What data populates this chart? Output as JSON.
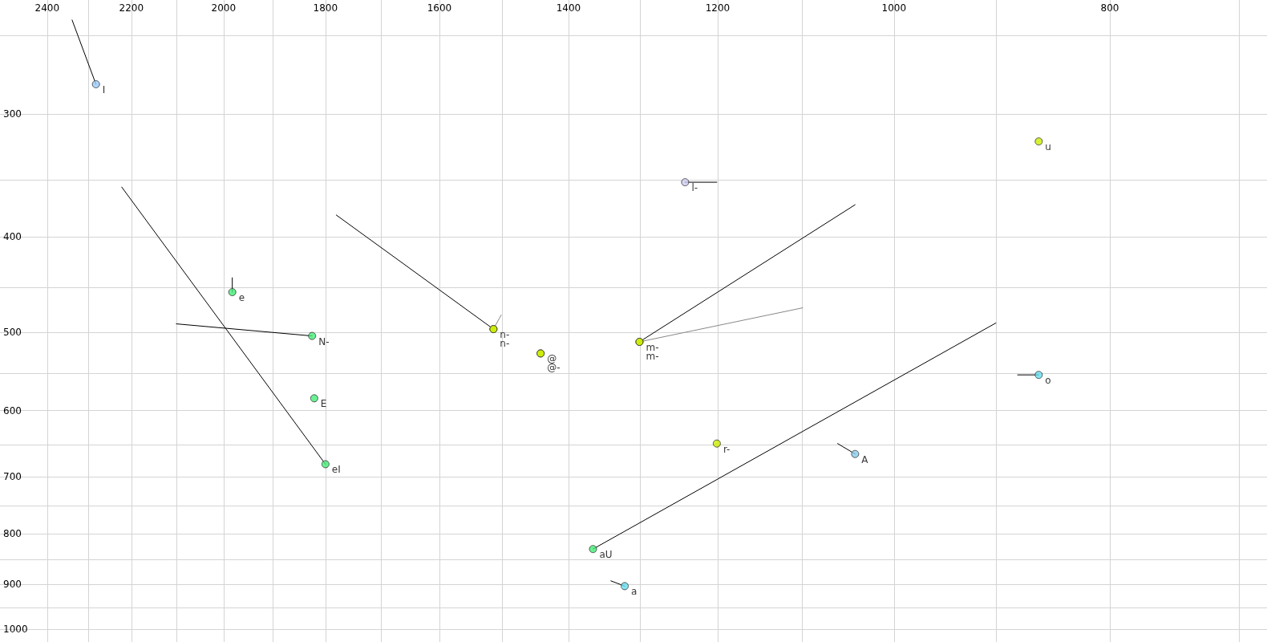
{
  "chart_data": {
    "type": "scatter",
    "log": "xy",
    "grid": true,
    "xlim": [
      2520,
      680
    ],
    "ylim": [
      1030,
      230
    ],
    "xticks": [
      2400,
      {
        "value": 2300,
        "label": null
      },
      2200,
      {
        "value": 2100,
        "label": null
      },
      2000,
      {
        "value": 1900,
        "label": null
      },
      1800,
      {
        "value": 1700,
        "label": null
      },
      1600,
      {
        "value": 1500,
        "label": null
      },
      1400,
      {
        "value": 1300,
        "label": null
      },
      1200,
      {
        "value": 1100,
        "label": null
      },
      1000,
      {
        "value": 900,
        "label": null
      },
      800,
      {
        "value": 700,
        "label": null
      }
    ],
    "yticks": [
      {
        "value": 250,
        "label": null
      },
      300,
      {
        "value": 350,
        "label": null
      },
      400,
      {
        "value": 450,
        "label": null
      },
      500,
      {
        "value": 550,
        "label": null
      },
      600,
      {
        "value": 650,
        "label": null
      },
      700,
      {
        "value": 750,
        "label": null
      },
      800,
      {
        "value": 850,
        "label": null
      },
      900,
      {
        "value": 950,
        "label": null
      },
      1000
    ],
    "series": [
      {
        "type": "line",
        "color": "#000000",
        "x": [
          2282,
          2339
        ],
        "values": [
          280,
          241
        ]
      },
      {
        "type": "line",
        "color": "#000000",
        "x": [
          1800,
          2222
        ],
        "values": [
          680,
          356
        ]
      },
      {
        "type": "line",
        "color": "#000000",
        "x": [
          1825,
          2100
        ],
        "values": [
          504,
          490
        ]
      },
      {
        "type": "line",
        "color": "#000000",
        "x": [
          1982,
          1982
        ],
        "values": [
          455,
          440
        ]
      },
      {
        "type": "line",
        "color": "#000000",
        "x": [
          1513,
          1780
        ],
        "values": [
          496,
          380
        ]
      },
      {
        "type": "line",
        "color": "#888888",
        "x": [
          1513,
          1501
        ],
        "values": [
          496,
          480
        ]
      },
      {
        "type": "line",
        "color": "#000000",
        "x": [
          1301,
          1041
        ],
        "values": [
          511,
          371
        ]
      },
      {
        "type": "line",
        "color": "#888888",
        "x": [
          1301,
          1099
        ],
        "values": [
          511,
          472
        ]
      },
      {
        "type": "line",
        "color": "#000000",
        "x": [
          1241,
          1201
        ],
        "values": [
          352,
          352
        ]
      },
      {
        "type": "line",
        "color": "#000000",
        "x": [
          861,
          880
        ],
        "values": [
          552,
          552
        ]
      },
      {
        "type": "line",
        "color": "#000000",
        "x": [
          1041,
          1060
        ],
        "values": [
          664,
          648
        ]
      },
      {
        "type": "line",
        "color": "#000000",
        "x": [
          1365,
          900
        ],
        "values": [
          829,
          489
        ]
      },
      {
        "type": "line",
        "color": "#000000",
        "x": [
          1321,
          1340
        ],
        "values": [
          904,
          893
        ]
      },
      {
        "marker": "circle",
        "x": [
          2282,
          1241,
          861,
          1982,
          1825,
          1513,
          1513,
          1441,
          1441,
          1301,
          1301,
          861,
          1821,
          1800,
          1201,
          1041,
          1365,
          1321
        ],
        "values": [
          280,
          352,
          320,
          455,
          504,
          496,
          496,
          525,
          525,
          511,
          511,
          552,
          583,
          680,
          648,
          664,
          829,
          904
        ],
        "colors": [
          "#99ccff",
          "#ccccf0",
          "#ccee00",
          "#44ee77",
          "#44ee77",
          "#ccee00",
          "#ccee00",
          "#ccee00",
          "#ccee00",
          "#ccee00",
          "#ccee00",
          "#66ddee",
          "#44ee77",
          "#44ee77",
          "#ccee00",
          "#88ccee",
          "#44ee77",
          "#66ddee"
        ],
        "value_labels": [
          "I",
          "l-",
          "u",
          "e",
          "N-",
          "n-",
          "n-",
          "@",
          "@-",
          "m-",
          "m-",
          "o",
          "E",
          "eI",
          "r-",
          "A",
          "aU",
          "a"
        ]
      }
    ]
  }
}
